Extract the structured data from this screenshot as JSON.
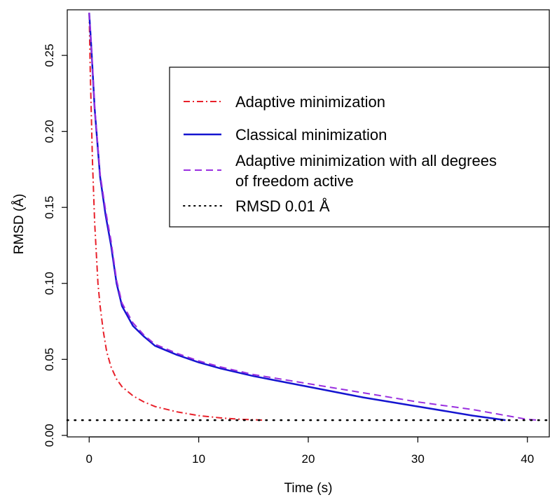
{
  "chart_data": {
    "type": "line",
    "xlabel": "Time (s)",
    "ylabel": "RMSD (Å)",
    "xlim": [
      -2,
      42
    ],
    "ylim": [
      -0.001,
      0.28
    ],
    "x_ticks": [
      0,
      10,
      20,
      30,
      40
    ],
    "x_tick_labels": [
      "0",
      "10",
      "20",
      "30",
      "40"
    ],
    "y_ticks": [
      0.0,
      0.05,
      0.1,
      0.15,
      0.2,
      0.25
    ],
    "y_tick_labels": [
      "0.00",
      "0.05",
      "0.10",
      "0.15",
      "0.20",
      "0.25"
    ],
    "grid": false,
    "legend_position": "top-right",
    "series": [
      {
        "name": "Adaptive minimization",
        "color": "#e8202a",
        "dash": "dashdot",
        "x": [
          0,
          0.1,
          0.3,
          0.5,
          0.8,
          1.0,
          1.3,
          1.6,
          2.0,
          2.5,
          3.0,
          4.0,
          5.0,
          6.0,
          8.0,
          10.0,
          12.0,
          14.0,
          16.0
        ],
        "y": [
          0.278,
          0.24,
          0.18,
          0.14,
          0.1,
          0.085,
          0.068,
          0.055,
          0.045,
          0.037,
          0.032,
          0.026,
          0.022,
          0.019,
          0.0155,
          0.013,
          0.0115,
          0.0105,
          0.01
        ]
      },
      {
        "name": "Classical minimization",
        "color": "#1515d0",
        "dash": "solid",
        "x": [
          0,
          0.2,
          0.5,
          1.0,
          1.5,
          2.0,
          2.5,
          3.0,
          4.0,
          5.0,
          6.0,
          8.0,
          10.0,
          12.0,
          15.0,
          20.0,
          25.0,
          30.0,
          35.0,
          38.0
        ],
        "y": [
          0.278,
          0.255,
          0.215,
          0.17,
          0.145,
          0.125,
          0.1,
          0.085,
          0.072,
          0.065,
          0.059,
          0.053,
          0.048,
          0.044,
          0.039,
          0.032,
          0.025,
          0.019,
          0.013,
          0.01
        ]
      },
      {
        "name": "Adaptive minimization with all degrees of freedom active",
        "name_lines": [
          "Adaptive minimization with all degrees",
          "of freedom active"
        ],
        "color": "#9a2fe0",
        "dash": "dashed",
        "x": [
          0,
          0.2,
          0.5,
          1.0,
          1.5,
          2.0,
          2.5,
          3.0,
          4.0,
          5.0,
          6.0,
          8.0,
          10.0,
          12.0,
          15.0,
          20.0,
          25.0,
          30.0,
          35.0,
          40.0,
          41.0
        ],
        "y": [
          0.278,
          0.256,
          0.216,
          0.172,
          0.148,
          0.128,
          0.102,
          0.087,
          0.074,
          0.066,
          0.06,
          0.054,
          0.049,
          0.045,
          0.04,
          0.034,
          0.028,
          0.022,
          0.017,
          0.0105,
          0.01
        ]
      },
      {
        "name": "RMSD 0.01 Å",
        "color": "#000000",
        "dash": "dotted",
        "x": [
          -2,
          42
        ],
        "y": [
          0.01,
          0.01
        ]
      }
    ]
  }
}
